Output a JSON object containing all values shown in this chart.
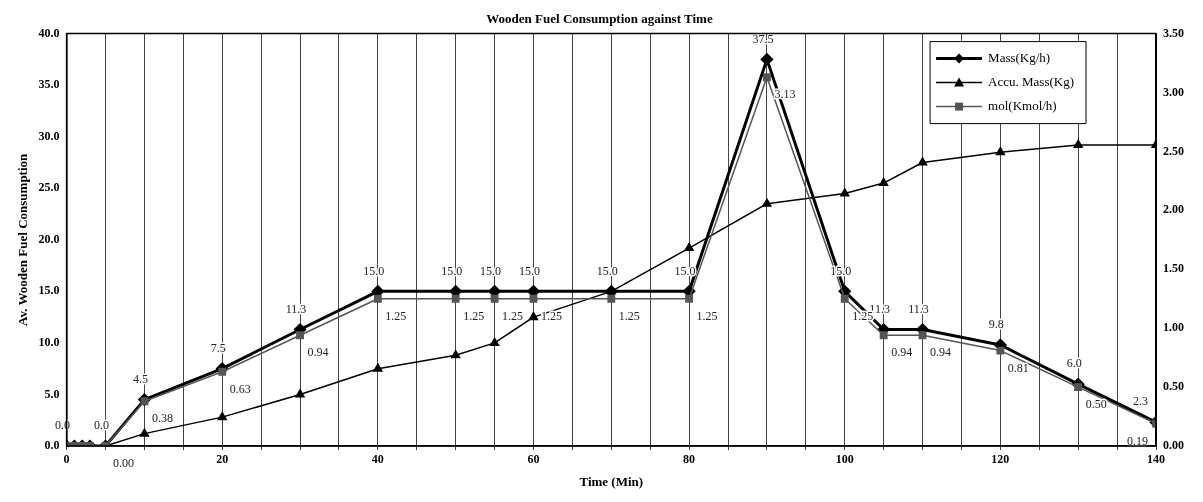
{
  "chart_data": {
    "type": "line",
    "title": "Wooden Fuel Consumption against Time",
    "xlabel": "Time (Min)",
    "ylabel": "Av. Wooden Fuel Consumption",
    "x": [
      0,
      1,
      2,
      3,
      5,
      10,
      20,
      30,
      40,
      50,
      55,
      60,
      70,
      80,
      90,
      100,
      105,
      110,
      120,
      130,
      140
    ],
    "xlim": [
      0,
      140
    ],
    "xticks": [
      0,
      {
        "value": 5,
        "label": null
      },
      {
        "value": 10,
        "label": null
      },
      {
        "value": 15,
        "label": null
      },
      20,
      {
        "value": 25,
        "label": null
      },
      {
        "value": 30,
        "label": null
      },
      {
        "value": 35,
        "label": null
      },
      40,
      {
        "value": 45,
        "label": null
      },
      {
        "value": 50,
        "label": null
      },
      {
        "value": 55,
        "label": null
      },
      60,
      {
        "value": 65,
        "label": null
      },
      {
        "value": 70,
        "label": null
      },
      {
        "value": 75,
        "label": null
      },
      80,
      {
        "value": 85,
        "label": null
      },
      {
        "value": 90,
        "label": null
      },
      {
        "value": 95,
        "label": null
      },
      100,
      {
        "value": 105,
        "label": null
      },
      {
        "value": 110,
        "label": null
      },
      {
        "value": 115,
        "label": null
      },
      120,
      {
        "value": 125,
        "label": null
      },
      {
        "value": 130,
        "label": null
      },
      {
        "value": 135,
        "label": null
      },
      140
    ],
    "ylim": [
      0,
      40
    ],
    "yticks": [
      {
        "value": 0,
        "label": "0.0"
      },
      {
        "value": 5,
        "label": "5.0"
      },
      {
        "value": 10,
        "label": "10.0"
      },
      {
        "value": 15,
        "label": "15.0"
      },
      {
        "value": 20,
        "label": "20.0"
      },
      {
        "value": 25,
        "label": "25.0"
      },
      {
        "value": 30,
        "label": "30.0"
      },
      {
        "value": 35,
        "label": "35.0"
      },
      {
        "value": 40,
        "label": "40.0"
      }
    ],
    "y2lim": [
      0,
      3.5
    ],
    "y2ticks": [
      {
        "value": 0,
        "label": "0.00"
      },
      {
        "value": 0.5,
        "label": "0.50"
      },
      {
        "value": 1,
        "label": "1.00"
      },
      {
        "value": 1.5,
        "label": "1.50"
      },
      {
        "value": 2,
        "label": "2.00"
      },
      {
        "value": 2.5,
        "label": "2.50"
      },
      {
        "value": 3,
        "label": "3.00"
      },
      {
        "value": 3.5,
        "label": "3.50"
      }
    ],
    "grid": "x",
    "legend": "top right",
    "series": [
      {
        "name": "Mass(Kg/h)",
        "color": "#000000",
        "marker": "diamond",
        "values": [
          0,
          0,
          0,
          0,
          0,
          4.5,
          7.5,
          11.3,
          15,
          15,
          15,
          15,
          15,
          15,
          37.5,
          15,
          11.3,
          11.3,
          9.8,
          6.0,
          2.3
        ],
        "value_labels": [
          "0.0",
          null,
          null,
          null,
          "0.0",
          "4.5",
          "7.5",
          "11.3",
          "15.0",
          "15.0",
          "15.0",
          "15.0",
          "15.0",
          "15.0",
          "37.5",
          "15.0",
          "11.3",
          "11.3",
          "9.8",
          "6.0",
          "2.3"
        ]
      },
      {
        "name": "Accu. Mass(Kg)",
        "color": "#000000",
        "marker": "triangle",
        "values": [
          0,
          0,
          0,
          0,
          0,
          1.2,
          2.8,
          5.0,
          7.5,
          8.8,
          10.0,
          12.5,
          15.0,
          19.2,
          23.5,
          24.5,
          25.5,
          27.5,
          28.5,
          29.2,
          29.2
        ]
      },
      {
        "name": "mol(Kmol/h)",
        "color": "#555555",
        "marker": "square",
        "axis": "y2",
        "values": [
          0,
          0,
          0,
          0,
          0,
          0.38,
          0.63,
          0.94,
          1.25,
          1.25,
          1.25,
          1.25,
          1.25,
          1.25,
          3.13,
          1.25,
          0.94,
          0.94,
          0.81,
          0.5,
          0.19
        ],
        "value_labels": [
          null,
          null,
          null,
          null,
          "0.00",
          "0.38",
          "0.63",
          "0.94",
          "1.25",
          "1.25",
          "1.25",
          "1.25",
          "1.25",
          "1.25",
          "3.13",
          "1.25",
          "0.94",
          "0.94",
          "0.81",
          "0.50",
          "0.19"
        ]
      }
    ]
  }
}
